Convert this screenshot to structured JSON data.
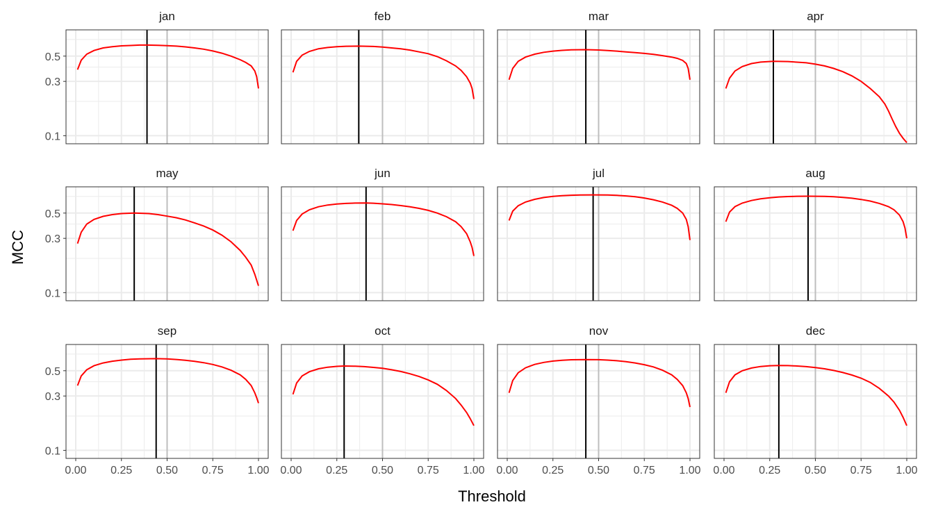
{
  "chart_data": {
    "type": "line",
    "xlabel": "Threshold",
    "ylabel": "MCC",
    "xlim": [
      0,
      1
    ],
    "ylim": [
      0.085,
      0.85
    ],
    "y_scale": "log",
    "x_ticks": [
      "0.00",
      "0.25",
      "0.50",
      "0.75",
      "1.00"
    ],
    "y_ticks": [
      "0.1",
      "0.3",
      "0.5"
    ],
    "grid": true,
    "reference_line_x": 0.5,
    "colors": {
      "curve": "#ff0000",
      "optimal_line": "#000000",
      "reference_line": "#bebebe",
      "grid": "#ebebeb",
      "panel_border": "#333333"
    },
    "panels": [
      {
        "label": "jan",
        "optimal": 0.39,
        "curve": [
          [
            0.01,
            0.38
          ],
          [
            0.03,
            0.46
          ],
          [
            0.06,
            0.52
          ],
          [
            0.1,
            0.56
          ],
          [
            0.15,
            0.59
          ],
          [
            0.2,
            0.605
          ],
          [
            0.25,
            0.615
          ],
          [
            0.3,
            0.62
          ],
          [
            0.35,
            0.625
          ],
          [
            0.39,
            0.625
          ],
          [
            0.45,
            0.622
          ],
          [
            0.5,
            0.618
          ],
          [
            0.55,
            0.612
          ],
          [
            0.6,
            0.603
          ],
          [
            0.65,
            0.59
          ],
          [
            0.7,
            0.575
          ],
          [
            0.75,
            0.555
          ],
          [
            0.8,
            0.53
          ],
          [
            0.85,
            0.5
          ],
          [
            0.9,
            0.465
          ],
          [
            0.93,
            0.44
          ],
          [
            0.96,
            0.41
          ],
          [
            0.98,
            0.37
          ],
          [
            0.99,
            0.33
          ],
          [
            1.0,
            0.26
          ]
        ]
      },
      {
        "label": "feb",
        "optimal": 0.37,
        "curve": [
          [
            0.01,
            0.36
          ],
          [
            0.03,
            0.45
          ],
          [
            0.06,
            0.51
          ],
          [
            0.1,
            0.55
          ],
          [
            0.15,
            0.58
          ],
          [
            0.2,
            0.595
          ],
          [
            0.25,
            0.605
          ],
          [
            0.3,
            0.61
          ],
          [
            0.37,
            0.612
          ],
          [
            0.45,
            0.608
          ],
          [
            0.5,
            0.6
          ],
          [
            0.55,
            0.59
          ],
          [
            0.6,
            0.58
          ],
          [
            0.65,
            0.565
          ],
          [
            0.7,
            0.545
          ],
          [
            0.75,
            0.525
          ],
          [
            0.8,
            0.495
          ],
          [
            0.85,
            0.455
          ],
          [
            0.9,
            0.41
          ],
          [
            0.93,
            0.375
          ],
          [
            0.96,
            0.33
          ],
          [
            0.98,
            0.29
          ],
          [
            0.99,
            0.26
          ],
          [
            1.0,
            0.21
          ]
        ]
      },
      {
        "label": "mar",
        "optimal": 0.43,
        "curve": [
          [
            0.01,
            0.31
          ],
          [
            0.03,
            0.39
          ],
          [
            0.06,
            0.45
          ],
          [
            0.1,
            0.49
          ],
          [
            0.15,
            0.52
          ],
          [
            0.2,
            0.54
          ],
          [
            0.25,
            0.553
          ],
          [
            0.3,
            0.562
          ],
          [
            0.35,
            0.568
          ],
          [
            0.43,
            0.57
          ],
          [
            0.5,
            0.566
          ],
          [
            0.55,
            0.56
          ],
          [
            0.6,
            0.553
          ],
          [
            0.65,
            0.545
          ],
          [
            0.7,
            0.537
          ],
          [
            0.75,
            0.528
          ],
          [
            0.8,
            0.518
          ],
          [
            0.85,
            0.505
          ],
          [
            0.9,
            0.49
          ],
          [
            0.93,
            0.478
          ],
          [
            0.96,
            0.458
          ],
          [
            0.98,
            0.43
          ],
          [
            0.99,
            0.39
          ],
          [
            1.0,
            0.31
          ]
        ]
      },
      {
        "label": "apr",
        "optimal": 0.27,
        "curve": [
          [
            0.01,
            0.26
          ],
          [
            0.03,
            0.32
          ],
          [
            0.06,
            0.37
          ],
          [
            0.1,
            0.405
          ],
          [
            0.15,
            0.43
          ],
          [
            0.2,
            0.443
          ],
          [
            0.27,
            0.45
          ],
          [
            0.35,
            0.448
          ],
          [
            0.45,
            0.437
          ],
          [
            0.5,
            0.425
          ],
          [
            0.55,
            0.41
          ],
          [
            0.6,
            0.39
          ],
          [
            0.65,
            0.365
          ],
          [
            0.7,
            0.335
          ],
          [
            0.75,
            0.3
          ],
          [
            0.8,
            0.26
          ],
          [
            0.85,
            0.22
          ],
          [
            0.88,
            0.19
          ],
          [
            0.9,
            0.165
          ],
          [
            0.92,
            0.14
          ],
          [
            0.94,
            0.12
          ],
          [
            0.96,
            0.105
          ],
          [
            0.98,
            0.095
          ],
          [
            1.0,
            0.087
          ]
        ]
      },
      {
        "label": "may",
        "optimal": 0.32,
        "curve": [
          [
            0.01,
            0.27
          ],
          [
            0.03,
            0.34
          ],
          [
            0.06,
            0.4
          ],
          [
            0.1,
            0.44
          ],
          [
            0.15,
            0.468
          ],
          [
            0.2,
            0.485
          ],
          [
            0.25,
            0.495
          ],
          [
            0.32,
            0.5
          ],
          [
            0.4,
            0.495
          ],
          [
            0.45,
            0.485
          ],
          [
            0.5,
            0.47
          ],
          [
            0.55,
            0.455
          ],
          [
            0.6,
            0.435
          ],
          [
            0.65,
            0.41
          ],
          [
            0.7,
            0.385
          ],
          [
            0.75,
            0.355
          ],
          [
            0.8,
            0.32
          ],
          [
            0.85,
            0.28
          ],
          [
            0.9,
            0.235
          ],
          [
            0.93,
            0.205
          ],
          [
            0.96,
            0.175
          ],
          [
            0.98,
            0.145
          ],
          [
            1.0,
            0.115
          ]
        ]
      },
      {
        "label": "jun",
        "optimal": 0.41,
        "curve": [
          [
            0.01,
            0.35
          ],
          [
            0.03,
            0.43
          ],
          [
            0.06,
            0.49
          ],
          [
            0.1,
            0.535
          ],
          [
            0.15,
            0.568
          ],
          [
            0.2,
            0.588
          ],
          [
            0.25,
            0.6
          ],
          [
            0.3,
            0.608
          ],
          [
            0.35,
            0.612
          ],
          [
            0.41,
            0.613
          ],
          [
            0.45,
            0.61
          ],
          [
            0.5,
            0.603
          ],
          [
            0.55,
            0.594
          ],
          [
            0.6,
            0.582
          ],
          [
            0.65,
            0.567
          ],
          [
            0.7,
            0.55
          ],
          [
            0.75,
            0.528
          ],
          [
            0.8,
            0.5
          ],
          [
            0.85,
            0.465
          ],
          [
            0.9,
            0.42
          ],
          [
            0.93,
            0.38
          ],
          [
            0.96,
            0.33
          ],
          [
            0.98,
            0.28
          ],
          [
            0.99,
            0.25
          ],
          [
            1.0,
            0.21
          ]
        ]
      },
      {
        "label": "jul",
        "optimal": 0.47,
        "curve": [
          [
            0.01,
            0.43
          ],
          [
            0.03,
            0.52
          ],
          [
            0.06,
            0.58
          ],
          [
            0.1,
            0.625
          ],
          [
            0.15,
            0.66
          ],
          [
            0.2,
            0.685
          ],
          [
            0.25,
            0.7
          ],
          [
            0.3,
            0.71
          ],
          [
            0.35,
            0.717
          ],
          [
            0.4,
            0.72
          ],
          [
            0.47,
            0.722
          ],
          [
            0.55,
            0.72
          ],
          [
            0.6,
            0.715
          ],
          [
            0.65,
            0.707
          ],
          [
            0.7,
            0.695
          ],
          [
            0.75,
            0.678
          ],
          [
            0.8,
            0.655
          ],
          [
            0.85,
            0.625
          ],
          [
            0.9,
            0.585
          ],
          [
            0.93,
            0.55
          ],
          [
            0.96,
            0.5
          ],
          [
            0.98,
            0.44
          ],
          [
            0.99,
            0.38
          ],
          [
            1.0,
            0.29
          ]
        ]
      },
      {
        "label": "aug",
        "optimal": 0.46,
        "curve": [
          [
            0.01,
            0.42
          ],
          [
            0.03,
            0.51
          ],
          [
            0.06,
            0.57
          ],
          [
            0.1,
            0.612
          ],
          [
            0.15,
            0.645
          ],
          [
            0.2,
            0.667
          ],
          [
            0.25,
            0.682
          ],
          [
            0.3,
            0.692
          ],
          [
            0.35,
            0.698
          ],
          [
            0.4,
            0.702
          ],
          [
            0.46,
            0.703
          ],
          [
            0.55,
            0.7
          ],
          [
            0.6,
            0.695
          ],
          [
            0.65,
            0.687
          ],
          [
            0.7,
            0.675
          ],
          [
            0.75,
            0.658
          ],
          [
            0.8,
            0.637
          ],
          [
            0.85,
            0.608
          ],
          [
            0.9,
            0.57
          ],
          [
            0.93,
            0.535
          ],
          [
            0.96,
            0.48
          ],
          [
            0.98,
            0.42
          ],
          [
            0.99,
            0.37
          ],
          [
            1.0,
            0.3
          ]
        ]
      },
      {
        "label": "sep",
        "optimal": 0.44,
        "curve": [
          [
            0.01,
            0.37
          ],
          [
            0.03,
            0.45
          ],
          [
            0.06,
            0.51
          ],
          [
            0.1,
            0.553
          ],
          [
            0.15,
            0.585
          ],
          [
            0.2,
            0.606
          ],
          [
            0.25,
            0.62
          ],
          [
            0.3,
            0.63
          ],
          [
            0.35,
            0.636
          ],
          [
            0.44,
            0.638
          ],
          [
            0.5,
            0.635
          ],
          [
            0.55,
            0.628
          ],
          [
            0.6,
            0.618
          ],
          [
            0.65,
            0.605
          ],
          [
            0.7,
            0.588
          ],
          [
            0.75,
            0.567
          ],
          [
            0.8,
            0.54
          ],
          [
            0.85,
            0.505
          ],
          [
            0.9,
            0.46
          ],
          [
            0.93,
            0.42
          ],
          [
            0.96,
            0.37
          ],
          [
            0.98,
            0.32
          ],
          [
            0.99,
            0.29
          ],
          [
            1.0,
            0.26
          ]
        ]
      },
      {
        "label": "oct",
        "optimal": 0.29,
        "curve": [
          [
            0.01,
            0.31
          ],
          [
            0.03,
            0.39
          ],
          [
            0.06,
            0.45
          ],
          [
            0.1,
            0.49
          ],
          [
            0.15,
            0.52
          ],
          [
            0.2,
            0.537
          ],
          [
            0.25,
            0.546
          ],
          [
            0.29,
            0.55
          ],
          [
            0.35,
            0.548
          ],
          [
            0.4,
            0.543
          ],
          [
            0.45,
            0.535
          ],
          [
            0.5,
            0.525
          ],
          [
            0.55,
            0.51
          ],
          [
            0.6,
            0.492
          ],
          [
            0.65,
            0.47
          ],
          [
            0.7,
            0.445
          ],
          [
            0.75,
            0.415
          ],
          [
            0.8,
            0.38
          ],
          [
            0.85,
            0.335
          ],
          [
            0.9,
            0.285
          ],
          [
            0.93,
            0.25
          ],
          [
            0.96,
            0.215
          ],
          [
            0.98,
            0.19
          ],
          [
            1.0,
            0.165
          ]
        ]
      },
      {
        "label": "nov",
        "optimal": 0.43,
        "curve": [
          [
            0.01,
            0.32
          ],
          [
            0.03,
            0.41
          ],
          [
            0.06,
            0.48
          ],
          [
            0.1,
            0.53
          ],
          [
            0.15,
            0.568
          ],
          [
            0.2,
            0.592
          ],
          [
            0.25,
            0.608
          ],
          [
            0.3,
            0.618
          ],
          [
            0.35,
            0.624
          ],
          [
            0.43,
            0.627
          ],
          [
            0.5,
            0.625
          ],
          [
            0.55,
            0.62
          ],
          [
            0.6,
            0.612
          ],
          [
            0.65,
            0.6
          ],
          [
            0.7,
            0.585
          ],
          [
            0.75,
            0.565
          ],
          [
            0.8,
            0.54
          ],
          [
            0.85,
            0.505
          ],
          [
            0.9,
            0.46
          ],
          [
            0.93,
            0.42
          ],
          [
            0.96,
            0.37
          ],
          [
            0.98,
            0.32
          ],
          [
            0.99,
            0.285
          ],
          [
            1.0,
            0.24
          ]
        ]
      },
      {
        "label": "dec",
        "optimal": 0.3,
        "curve": [
          [
            0.01,
            0.32
          ],
          [
            0.03,
            0.4
          ],
          [
            0.06,
            0.46
          ],
          [
            0.1,
            0.5
          ],
          [
            0.15,
            0.528
          ],
          [
            0.2,
            0.545
          ],
          [
            0.25,
            0.553
          ],
          [
            0.3,
            0.556
          ],
          [
            0.35,
            0.555
          ],
          [
            0.4,
            0.55
          ],
          [
            0.45,
            0.543
          ],
          [
            0.5,
            0.533
          ],
          [
            0.55,
            0.52
          ],
          [
            0.6,
            0.503
          ],
          [
            0.65,
            0.482
          ],
          [
            0.7,
            0.458
          ],
          [
            0.75,
            0.43
          ],
          [
            0.8,
            0.395
          ],
          [
            0.85,
            0.35
          ],
          [
            0.9,
            0.3
          ],
          [
            0.93,
            0.265
          ],
          [
            0.96,
            0.225
          ],
          [
            0.98,
            0.195
          ],
          [
            1.0,
            0.165
          ]
        ]
      }
    ]
  }
}
